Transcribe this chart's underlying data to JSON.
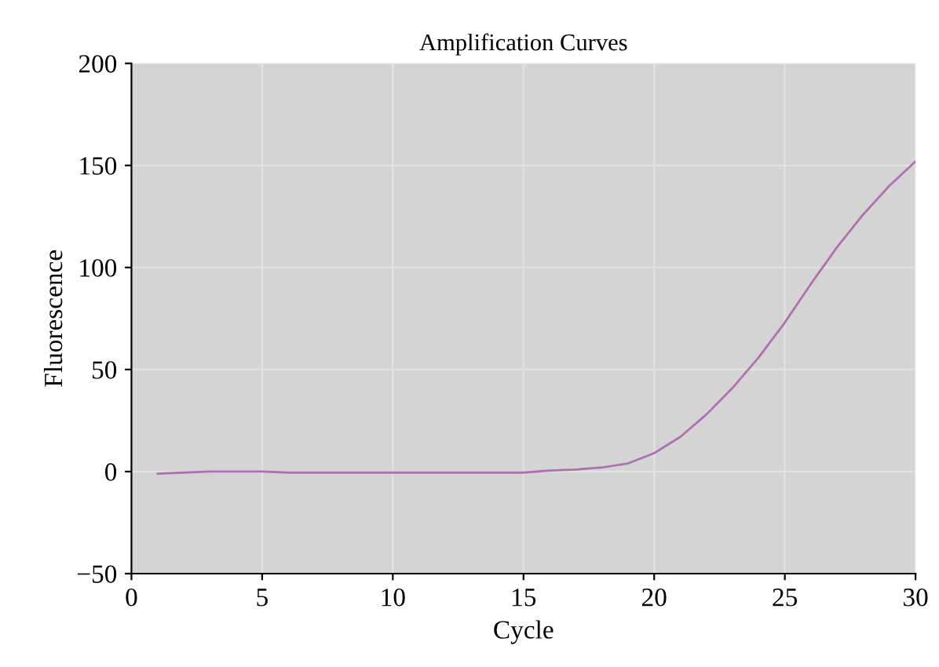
{
  "chart_data": {
    "type": "line",
    "title": "Amplification Curves",
    "xlabel": "Cycle",
    "ylabel": "Fluorescence",
    "x": [
      1,
      2,
      3,
      4,
      5,
      6,
      7,
      8,
      9,
      10,
      11,
      12,
      13,
      14,
      15,
      16,
      17,
      18,
      19,
      20,
      21,
      22,
      23,
      24,
      25,
      26,
      27,
      28,
      29,
      30
    ],
    "series": [
      {
        "color": "#b070b0",
        "values": [
          -1,
          -0.5,
          0,
          0,
          0,
          -0.5,
          -0.5,
          -0.5,
          -0.5,
          -0.5,
          -0.5,
          -0.5,
          -0.5,
          -0.5,
          -0.5,
          0.5,
          1,
          2,
          4,
          9,
          17,
          28,
          41,
          56,
          73,
          92,
          110,
          126,
          140,
          152
        ]
      }
    ],
    "xlim": [
      0,
      30
    ],
    "ylim": [
      -50,
      200
    ],
    "xticks": [
      0,
      5,
      10,
      15,
      20,
      25,
      30
    ],
    "yticks": [
      -50,
      0,
      50,
      100,
      150,
      200
    ],
    "grid": true,
    "marker": "none",
    "line_style": "solid",
    "legend": false
  }
}
